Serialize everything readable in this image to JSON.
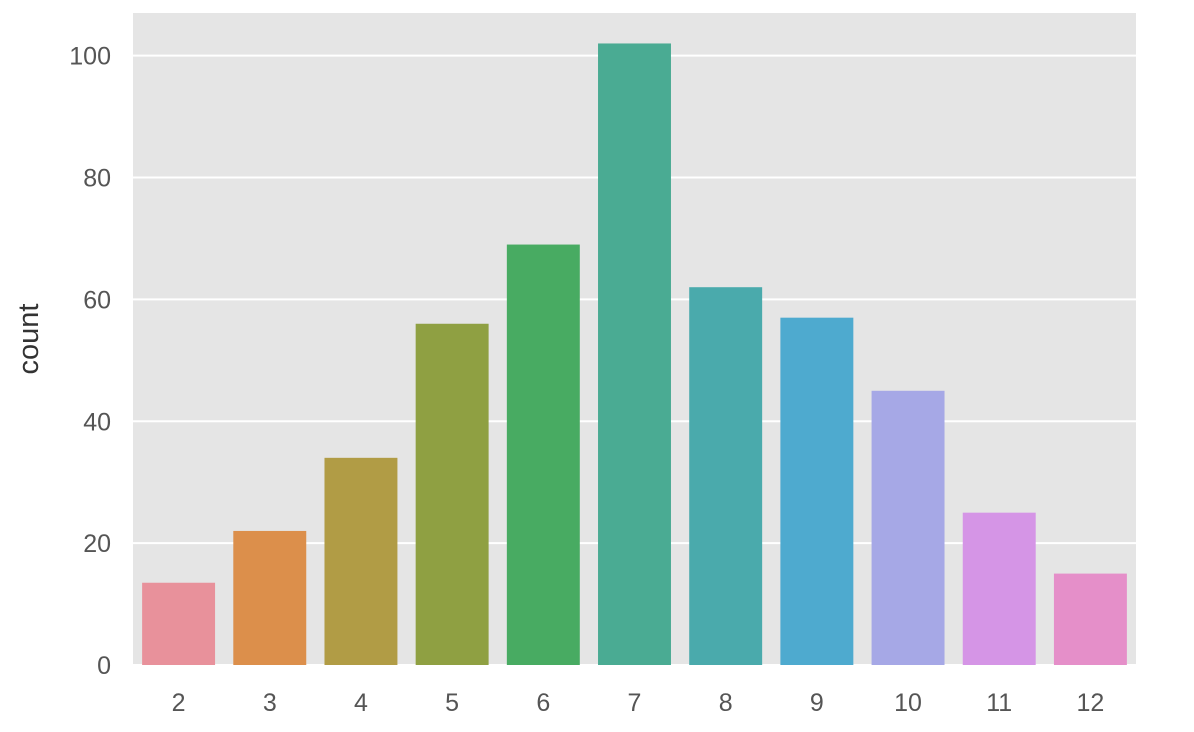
{
  "chart_data": {
    "type": "bar",
    "categories": [
      "2",
      "3",
      "4",
      "5",
      "6",
      "7",
      "8",
      "9",
      "10",
      "11",
      "12"
    ],
    "values": [
      13.5,
      22,
      34,
      56,
      69,
      102,
      62,
      57,
      45,
      25,
      15
    ],
    "title": "",
    "xlabel": "",
    "ylabel": "count",
    "ylim": [
      0,
      107
    ],
    "yticks": [
      "0",
      "20",
      "40",
      "60",
      "80",
      "100"
    ],
    "grid": true,
    "legend": "none",
    "colors": [
      "#e8919b",
      "#dc8f4b",
      "#b19c45",
      "#8fa042",
      "#48ab62",
      "#4aab93",
      "#4aaaac",
      "#4eaacf",
      "#a6a8e6",
      "#d595e6",
      "#e58fc9"
    ],
    "background_color": "#e5e5e5",
    "grid_color": "#ffffff"
  }
}
